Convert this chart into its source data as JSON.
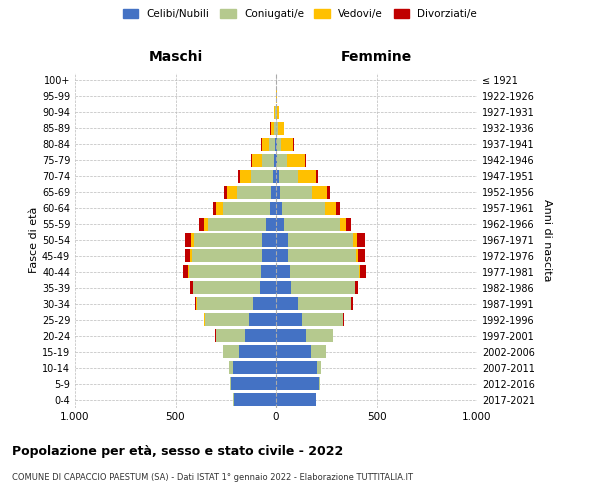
{
  "title": "Popolazione per età, sesso e stato civile - 2022",
  "subtitle": "COMUNE DI CAPACCIO PAESTUM (SA) - Dati ISTAT 1° gennaio 2022 - Elaborazione TUTTITALIA.IT",
  "maschi_label": "Maschi",
  "femmine_label": "Femmine",
  "age_groups_bottom_to_top": [
    "0-4",
    "5-9",
    "10-14",
    "15-19",
    "20-24",
    "25-29",
    "30-34",
    "35-39",
    "40-44",
    "45-49",
    "50-54",
    "55-59",
    "60-64",
    "65-69",
    "70-74",
    "75-79",
    "80-84",
    "85-89",
    "90-94",
    "95-99",
    "100+"
  ],
  "right_labels_bottom_to_top": [
    "2017-2021",
    "2012-2016",
    "2007-2011",
    "2002-2006",
    "1997-2001",
    "1992-1996",
    "1987-1991",
    "1982-1986",
    "1977-1981",
    "1972-1976",
    "1967-1971",
    "1962-1966",
    "1957-1961",
    "1952-1956",
    "1947-1951",
    "1942-1946",
    "1937-1941",
    "1932-1936",
    "1927-1931",
    "1922-1926",
    "≤ 1921"
  ],
  "ylabel_left": "Fasce di età",
  "ylabel_right": "Anni di nascita",
  "colors": {
    "celibi": "#4472c4",
    "coniugati": "#b5c98e",
    "vedovi": "#ffc000",
    "divorziati": "#c00000"
  },
  "legend_labels": [
    "Celibi/Nubili",
    "Coniugati/e",
    "Vedovi/e",
    "Divorziati/e"
  ],
  "xlim": 1000,
  "xticks": [
    -1000,
    -500,
    0,
    500,
    1000
  ],
  "xticklabels": [
    "1.000",
    "500",
    "0",
    "500",
    "1.000"
  ],
  "maschi_bottom_to_top": {
    "celibi": [
      210,
      225,
      215,
      185,
      155,
      135,
      115,
      82,
      75,
      70,
      70,
      49,
      32,
      26,
      16,
      9,
      5,
      2,
      1,
      0,
      0
    ],
    "coniugati": [
      2,
      5,
      20,
      80,
      145,
      220,
      280,
      330,
      360,
      350,
      340,
      290,
      230,
      170,
      110,
      60,
      30,
      10,
      3,
      1,
      0
    ],
    "vedovi": [
      0,
      0,
      0,
      0,
      0,
      1,
      2,
      3,
      5,
      8,
      12,
      20,
      35,
      50,
      55,
      50,
      35,
      15,
      5,
      1,
      0
    ],
    "divorziati": [
      0,
      0,
      0,
      1,
      2,
      4,
      8,
      12,
      22,
      25,
      30,
      22,
      18,
      12,
      10,
      5,
      3,
      1,
      0,
      0,
      0
    ]
  },
  "femmine_bottom_to_top": {
    "nubili": [
      198,
      215,
      205,
      175,
      148,
      128,
      108,
      76,
      68,
      62,
      60,
      42,
      28,
      22,
      14,
      7,
      4,
      2,
      1,
      0,
      0
    ],
    "coniugate": [
      2,
      4,
      18,
      72,
      135,
      205,
      265,
      315,
      345,
      335,
      325,
      275,
      215,
      155,
      95,
      50,
      22,
      8,
      2,
      1,
      0
    ],
    "vedove": [
      0,
      0,
      0,
      0,
      0,
      1,
      2,
      4,
      7,
      12,
      18,
      30,
      55,
      78,
      90,
      85,
      60,
      28,
      10,
      3,
      1
    ],
    "divorziate": [
      0,
      0,
      0,
      1,
      2,
      5,
      10,
      15,
      28,
      32,
      38,
      28,
      22,
      15,
      12,
      6,
      3,
      1,
      0,
      0,
      0
    ]
  },
  "background_color": "#ffffff",
  "grid_color": "#bbbbbb"
}
